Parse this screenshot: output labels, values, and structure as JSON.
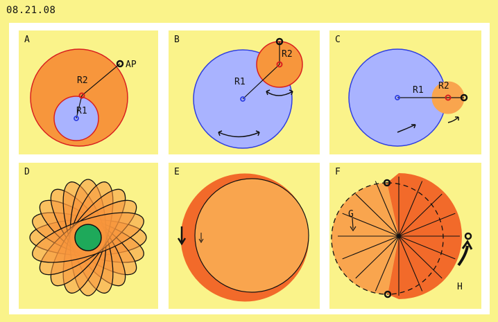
{
  "header": {
    "date": "08.21.08"
  },
  "panels": {
    "a": {
      "label": "A",
      "r1": "R1",
      "r2": "R2",
      "ap": "AP"
    },
    "b": {
      "label": "B",
      "r1": "R1",
      "r2": "R2"
    },
    "c": {
      "label": "C",
      "r1": "R1",
      "r2": "R2"
    },
    "d": {
      "label": "D"
    },
    "e": {
      "label": "E"
    },
    "f": {
      "label": "F",
      "g": "G",
      "h": "H"
    }
  },
  "colors": {
    "background": "#faf38a",
    "inner_frame": "#ffffff",
    "blue_fill": "#a9b3ff",
    "blue_stroke": "#2f3fe0",
    "orange_fill": "#f7963c",
    "orange_dark": "#f26a2a",
    "orange_light": "#f9a54e",
    "red": "#d81f1f",
    "green": "#1ea95a",
    "black": "#111111"
  }
}
